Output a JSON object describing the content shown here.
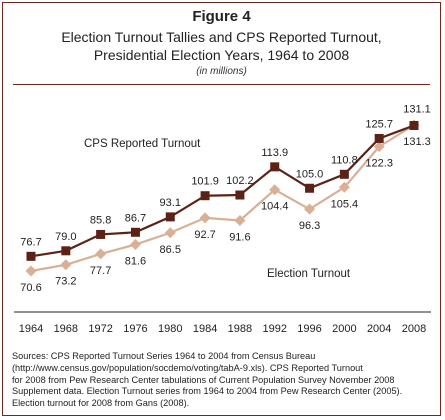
{
  "figure_label": "Figure 4",
  "title_line1": "Election Turnout Tallies and CPS Reported Turnout,",
  "title_line2": "Presidential Election Years, 1964 to 2008",
  "subtitle": "(in millions)",
  "sources": [
    "Sources: CPS Reported Turnout Series 1964 to 2004 from Census Bureau",
    "(http://www.census.gov/population/socdemo/voting/tabA-9.xls). CPS Reported Turnout",
    "for 2008 from Pew Research Center tabulations of Current Population Survey November 2008",
    "Supplement data. Election Turnout series from 1964 to 2004 from Pew Research Center (2005).",
    "Election turnout for 2008 from Gans (2008)."
  ],
  "chart_data": {
    "type": "line",
    "categories": [
      "1964",
      "1968",
      "1972",
      "1976",
      "1980",
      "1984",
      "1988",
      "1992",
      "1996",
      "2000",
      "2004",
      "2008"
    ],
    "ylim": [
      60,
      140
    ],
    "grid": false,
    "series": [
      {
        "name": "CPS Reported Turnout",
        "values": [
          76.7,
          79.0,
          85.8,
          86.7,
          93.1,
          101.9,
          102.2,
          113.9,
          105.0,
          110.8,
          125.7,
          131.1
        ],
        "labels": [
          "76.7",
          "79.0",
          "85.8",
          "86.7",
          "93.1",
          "101.9",
          "102.2",
          "113.9",
          "105.0",
          "110.8",
          "125.7",
          "131.1"
        ],
        "color": "#5b2318",
        "marker": "square"
      },
      {
        "name": "Election Turnout",
        "values": [
          70.6,
          73.2,
          77.7,
          81.6,
          86.5,
          92.7,
          91.6,
          104.4,
          96.3,
          105.4,
          122.3,
          131.3
        ],
        "labels": [
          "70.6",
          "73.2",
          "77.7",
          "81.6",
          "86.5",
          "92.7",
          "91.6",
          "104.4",
          "96.3",
          "105.4",
          "122.3",
          "131.3"
        ],
        "color": "#d9b095",
        "marker": "diamond"
      }
    ]
  }
}
